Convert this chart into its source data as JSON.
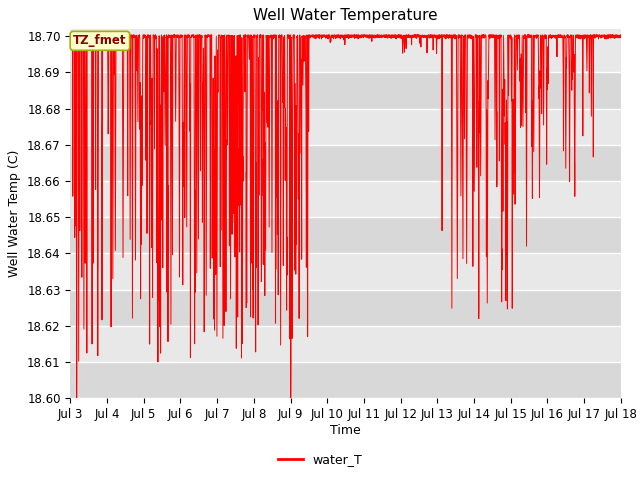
{
  "title": "Well Water Temperature",
  "ylabel": "Well Water Temp (C)",
  "xlabel": "Time",
  "legend_label": "water_T",
  "tz_label": "TZ_fmet",
  "line_color": "#ff0000",
  "ylim": [
    18.6,
    18.702
  ],
  "yticks": [
    18.6,
    18.61,
    18.62,
    18.63,
    18.64,
    18.65,
    18.66,
    18.67,
    18.68,
    18.69,
    18.7
  ],
  "axes_bg_light": "#e8e8e8",
  "axes_bg_dark": "#d8d8d8",
  "title_fontsize": 11,
  "label_fontsize": 9,
  "tick_fontsize": 8.5
}
